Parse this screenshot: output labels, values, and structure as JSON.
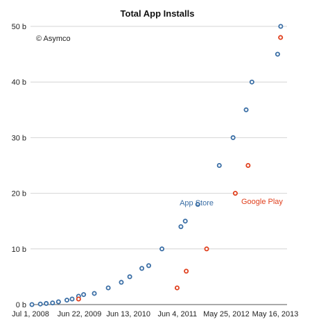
{
  "chart_data": {
    "type": "scatter",
    "title": "Total App Installs",
    "annotation": "© Asymco",
    "xlabel": "",
    "ylabel": "",
    "x_ticks": [
      "Jul 1, 2008",
      "Jun 22, 2009",
      "Jun 13, 2010",
      "Jun 4, 2011",
      "May 25, 2012",
      "May 16, 2013"
    ],
    "xlim": [
      "2008-07-01",
      "2013-06-30"
    ],
    "ylim": [
      0,
      50
    ],
    "y_ticks": [
      {
        "value": 0,
        "label": "0 b"
      },
      {
        "value": 10,
        "label": "10 b"
      },
      {
        "value": 20,
        "label": "20 b"
      },
      {
        "value": 30,
        "label": "30 b"
      },
      {
        "value": 40,
        "label": "40 b"
      },
      {
        "value": 50,
        "label": "50 b"
      }
    ],
    "grid": true,
    "series": [
      {
        "name": "App Store",
        "color": "#3a6ea5",
        "points": [
          {
            "x": "2008-07-11",
            "y": 0.0
          },
          {
            "x": "2008-09-09",
            "y": 0.1
          },
          {
            "x": "2008-10-21",
            "y": 0.2
          },
          {
            "x": "2008-12-05",
            "y": 0.3
          },
          {
            "x": "2009-01-16",
            "y": 0.5
          },
          {
            "x": "2009-03-17",
            "y": 0.8
          },
          {
            "x": "2009-04-23",
            "y": 1.0
          },
          {
            "x": "2009-06-08",
            "y": 1.5
          },
          {
            "x": "2009-07-14",
            "y": 1.8
          },
          {
            "x": "2009-09-28",
            "y": 2.0
          },
          {
            "x": "2010-01-05",
            "y": 3.0
          },
          {
            "x": "2010-04-08",
            "y": 4.0
          },
          {
            "x": "2010-06-07",
            "y": 5.0
          },
          {
            "x": "2010-09-01",
            "y": 6.5
          },
          {
            "x": "2010-10-20",
            "y": 7.0
          },
          {
            "x": "2011-01-22",
            "y": 10.0
          },
          {
            "x": "2011-06-06",
            "y": 14.0
          },
          {
            "x": "2011-07-07",
            "y": 15.0
          },
          {
            "x": "2011-10-04",
            "y": 18.0
          },
          {
            "x": "2012-03-05",
            "y": 25.0
          },
          {
            "x": "2012-06-11",
            "y": 30.0
          },
          {
            "x": "2012-09-12",
            "y": 35.0
          },
          {
            "x": "2012-10-23",
            "y": 40.0
          },
          {
            "x": "2013-05-16",
            "y": 50.0
          },
          {
            "x": "2013-04-24",
            "y": 45.0
          }
        ]
      },
      {
        "name": "Google Play",
        "color": "#e0401e",
        "points": [
          {
            "x": "2009-06-08",
            "y": 1.0
          },
          {
            "x": "2011-05-10",
            "y": 3.0
          },
          {
            "x": "2011-07-14",
            "y": 6.0
          },
          {
            "x": "2011-12-06",
            "y": 10.0
          },
          {
            "x": "2012-06-27",
            "y": 20.0
          },
          {
            "x": "2012-09-26",
            "y": 25.0
          },
          {
            "x": "2013-05-15",
            "y": 48.0
          }
        ]
      }
    ]
  }
}
